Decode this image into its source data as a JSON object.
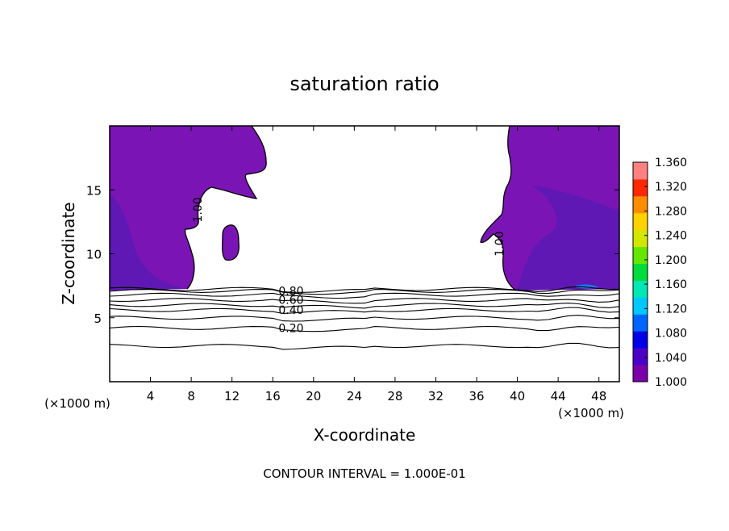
{
  "chart_data": {
    "type": "contour",
    "title": "saturation ratio",
    "xlabel": "X-coordinate",
    "ylabel": "Z-coordinate",
    "x_unit_left": "(×1000 m)",
    "x_unit_right": "(×1000 m)",
    "footer": "CONTOUR INTERVAL = 1.000E-01",
    "xlim": [
      0,
      50
    ],
    "ylim": [
      0,
      20
    ],
    "xticks": [
      4,
      8,
      12,
      16,
      20,
      24,
      28,
      32,
      36,
      40,
      44,
      48
    ],
    "yticks": [
      5,
      10,
      15
    ],
    "colorbar": {
      "range": [
        1.0,
        1.36
      ],
      "ticks": [
        "1.360",
        "1.320",
        "1.280",
        "1.240",
        "1.200",
        "1.160",
        "1.120",
        "1.080",
        "1.040",
        "1.000"
      ],
      "colors": [
        "#7a00a8",
        "#4b00c8",
        "#0000e6",
        "#0064ff",
        "#00c8ff",
        "#00e6b4",
        "#00dc3c",
        "#64e600",
        "#d2e600",
        "#ffd200",
        "#ff8c00",
        "#ff2800",
        "#ff8080"
      ]
    },
    "fill_colors": {
      "supersat": "#7a14b4",
      "supersat_deep": "#5a19b4",
      "peak": "#1e78ff"
    },
    "contour_lines": [
      {
        "level": 0.2,
        "label": "0.20",
        "z_left": 4.2,
        "z_right": 4.2
      },
      {
        "level": 0.3,
        "label": "",
        "z_left": 5.0,
        "z_right": 5.0
      },
      {
        "level": 0.4,
        "label": "0.40",
        "z_left": 5.6,
        "z_right": 5.6
      },
      {
        "level": 0.5,
        "label": "",
        "z_left": 6.0,
        "z_right": 6.0
      },
      {
        "level": 0.6,
        "label": "0.60",
        "z_left": 6.4,
        "z_right": 6.4
      },
      {
        "level": 0.7,
        "label": "",
        "z_left": 6.8,
        "z_right": 6.8
      },
      {
        "level": 0.8,
        "label": "0.80",
        "z_left": 7.1,
        "z_right": 7.1
      },
      {
        "level": 0.9,
        "label": "",
        "z_left": 7.25,
        "z_right": 7.25
      }
    ],
    "extra_line": {
      "z": 2.8
    },
    "contour_labels_1": [
      "1.00",
      "1.00"
    ]
  }
}
